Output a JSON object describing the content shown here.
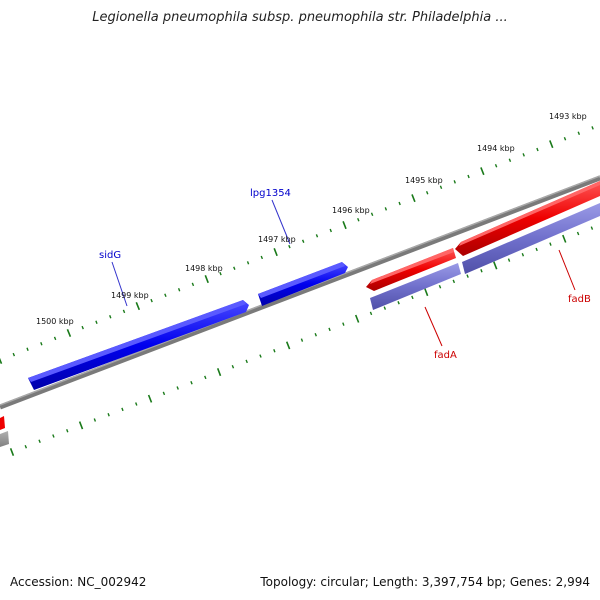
{
  "title": "Legionella pneumophila subsp. pneumophila str. Philadelphia ...",
  "footer": {
    "accession": "Accession: NC_002942",
    "summary": "Topology: circular; Length: 3,397,754 bp; Genes: 2,994"
  },
  "scale": {
    "labels": [
      "1493 kbp",
      "1494 kbp",
      "1495 kbp",
      "1496 kbp",
      "1497 kbp",
      "1498 kbp",
      "1499 kbp",
      "1500 kbp"
    ],
    "tick_color": "#1a7a1a"
  },
  "genes": {
    "sidG": "sidG",
    "lpg1354": "lpg1354",
    "fadA": "fadA",
    "fadB": "fadB"
  },
  "colors": {
    "forward_strand": "#0000ee",
    "reverse_strand": "#ee0000",
    "secondary": "#7070cc",
    "backbone": "#808080"
  }
}
